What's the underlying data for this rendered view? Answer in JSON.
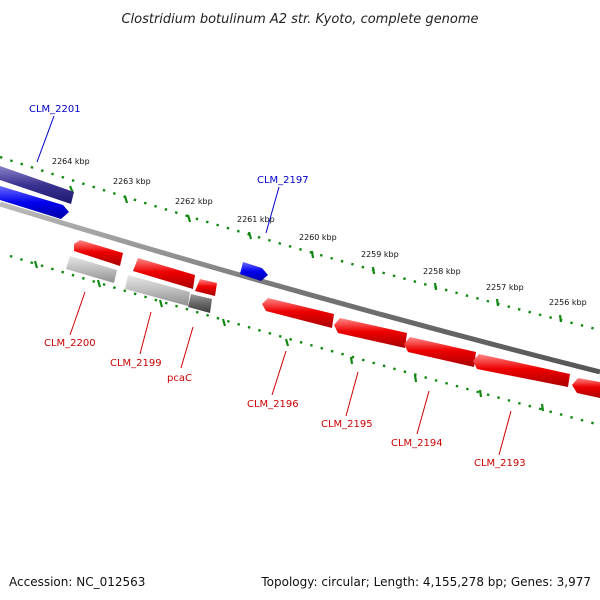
{
  "title": "Clostridium botulinum A2 str. Kyoto, complete genome",
  "scale_labels": [
    "2264 kbp",
    "2263 kbp",
    "2262 kbp",
    "2261 kbp",
    "2260 kbp",
    "2259 kbp",
    "2258 kbp",
    "2257 kbp",
    "2256 kbp"
  ],
  "genes": {
    "forward": [
      {
        "label": "CLM_2201",
        "color": "#0000cc"
      },
      {
        "label": "CLM_2197",
        "color": "#0000cc"
      }
    ],
    "reverse": [
      {
        "label": "CLM_2200",
        "color": "#cc0000"
      },
      {
        "label": "CLM_2199",
        "color": "#cc0000"
      },
      {
        "label": "pcaC",
        "color": "#cc0000"
      },
      {
        "label": "CLM_2196",
        "color": "#cc0000"
      },
      {
        "label": "CLM_2195",
        "color": "#cc0000"
      },
      {
        "label": "CLM_2194",
        "color": "#cc0000"
      },
      {
        "label": "CLM_2193",
        "color": "#cc0000"
      }
    ]
  },
  "footer": {
    "accession": "Accession: NC_012563",
    "topology": "Topology: circular; Length: 4,155,278 bp; Genes: 3,977"
  },
  "colors": {
    "forward_cds": "#0000ff",
    "reverse_cds": "#ff0000",
    "rna_like": "#bbbbbb",
    "tick": "#118811",
    "backbone": "#777777"
  }
}
